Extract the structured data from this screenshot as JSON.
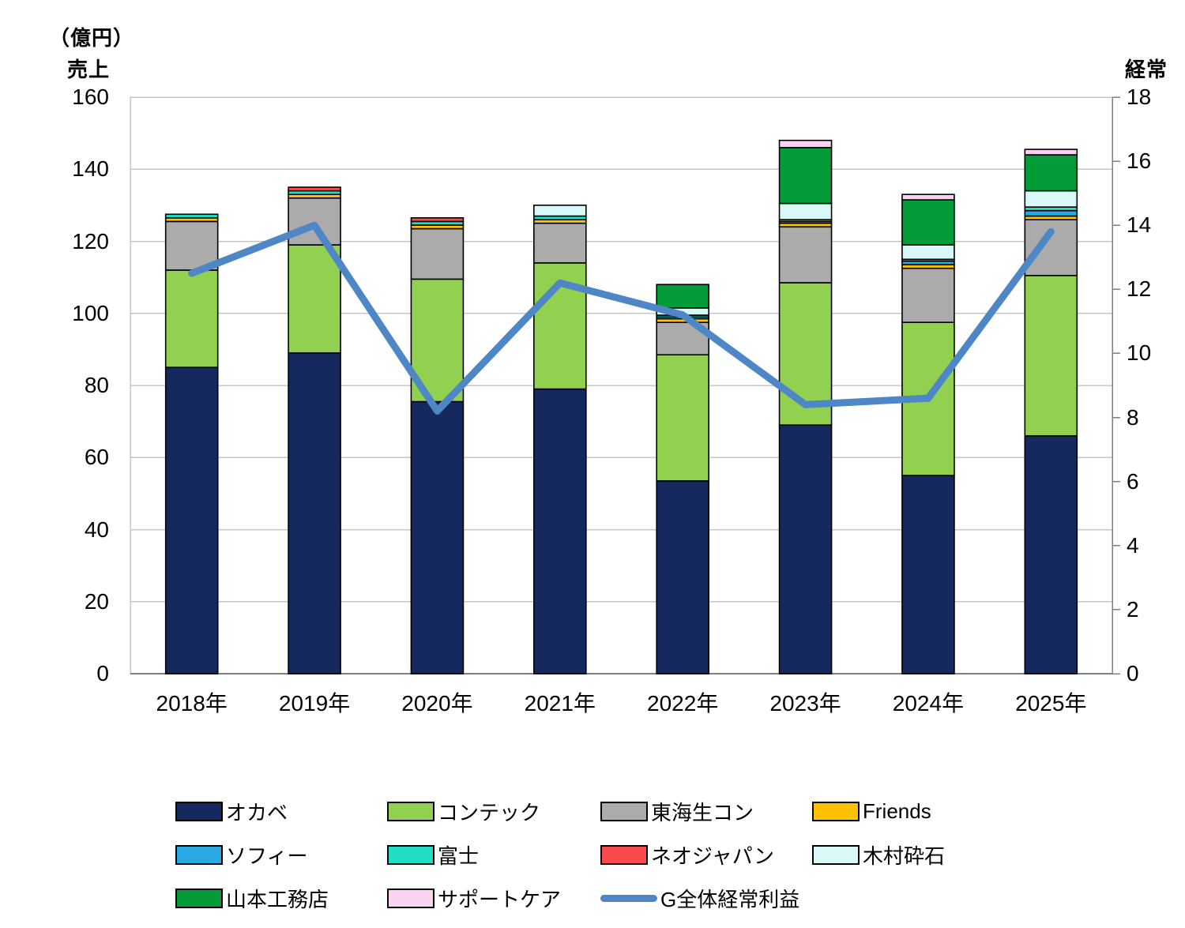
{
  "chart_data": {
    "type": "combo-stacked-bar-line",
    "title": "",
    "categories": [
      "2018年",
      "2019年",
      "2020年",
      "2021年",
      "2022年",
      "2023年",
      "2024年",
      "2025年"
    ],
    "bar_series": [
      {
        "name": "オカベ",
        "color": "#15295F",
        "values": [
          85,
          89,
          75.5,
          79,
          53.5,
          69,
          55,
          66
        ]
      },
      {
        "name": "コンテック",
        "color": "#92D050",
        "values": [
          27,
          30,
          34,
          35,
          35,
          39.5,
          42.5,
          44.5
        ]
      },
      {
        "name": "東海生コン",
        "color": "#ABABAB",
        "values": [
          13.5,
          13,
          14,
          11,
          9,
          15.5,
          15,
          15.5
        ]
      },
      {
        "name": "Friends",
        "color": "#FFC000",
        "values": [
          1,
          1,
          1,
          1,
          1,
          1,
          1,
          1
        ]
      },
      {
        "name": "ソフィー",
        "color": "#29A9E4",
        "values": [
          0,
          0,
          0,
          0,
          0.5,
          0.5,
          1,
          1.5
        ]
      },
      {
        "name": "富士",
        "color": "#1FDEC4",
        "values": [
          1,
          1,
          1,
          1,
          0.5,
          0.5,
          0.5,
          1
        ]
      },
      {
        "name": "ネオジャパン",
        "color": "#F94B4B",
        "values": [
          0,
          1,
          1,
          0,
          0,
          0,
          0,
          0
        ]
      },
      {
        "name": "木村砕石",
        "color": "#D9F8F8",
        "values": [
          0,
          0,
          0,
          3,
          2,
          4.5,
          4,
          4.5
        ]
      },
      {
        "name": "山本工務店",
        "color": "#049C38",
        "values": [
          0,
          0,
          0,
          0,
          6.5,
          15.5,
          12.5,
          10
        ]
      },
      {
        "name": "サポートケア",
        "color": "#FBD2F2",
        "values": [
          0,
          0,
          0,
          0,
          0,
          2,
          1.5,
          1.5
        ]
      }
    ],
    "line_series": {
      "name": "G全体経常利益",
      "color": "#4E86C6",
      "axis": "right",
      "values": [
        12.5,
        14.0,
        8.2,
        12.2,
        11.2,
        8.4,
        8.6,
        13.8
      ]
    },
    "left_axis": {
      "unit_label": "（億円）",
      "title": "売上",
      "min": 0,
      "max": 160,
      "step": 20,
      "ticks": [
        0,
        20,
        40,
        60,
        80,
        100,
        120,
        140,
        160
      ]
    },
    "right_axis": {
      "title": "経常",
      "min": 0,
      "max": 18,
      "step": 2,
      "ticks": [
        0,
        2,
        4,
        6,
        8,
        10,
        12,
        14,
        16,
        18
      ]
    },
    "grid": true,
    "legend_position": "bottom",
    "colors": {
      "gridline": "#C6C6C6",
      "axis_line": "#808080",
      "bar_border": "#000000"
    }
  },
  "legend": {
    "items": [
      {
        "label": "オカベ",
        "type": "box",
        "color": "#15295F"
      },
      {
        "label": "コンテック",
        "type": "box",
        "color": "#92D050"
      },
      {
        "label": "東海生コン",
        "type": "box",
        "color": "#ABABAB"
      },
      {
        "label": "Friends",
        "type": "box",
        "color": "#FFC000"
      },
      {
        "label": "ソフィー",
        "type": "box",
        "color": "#29A9E4"
      },
      {
        "label": "富士",
        "type": "box",
        "color": "#1FDEC4"
      },
      {
        "label": "ネオジャパン",
        "type": "box",
        "color": "#F94B4B"
      },
      {
        "label": "木村砕石",
        "type": "box",
        "color": "#D9F8F8"
      },
      {
        "label": "山本工務店",
        "type": "box",
        "color": "#049C38"
      },
      {
        "label": "サポートケア",
        "type": "box",
        "color": "#FBD2F2"
      },
      {
        "label": "G全体経常利益",
        "type": "line",
        "color": "#4E86C6"
      }
    ]
  }
}
